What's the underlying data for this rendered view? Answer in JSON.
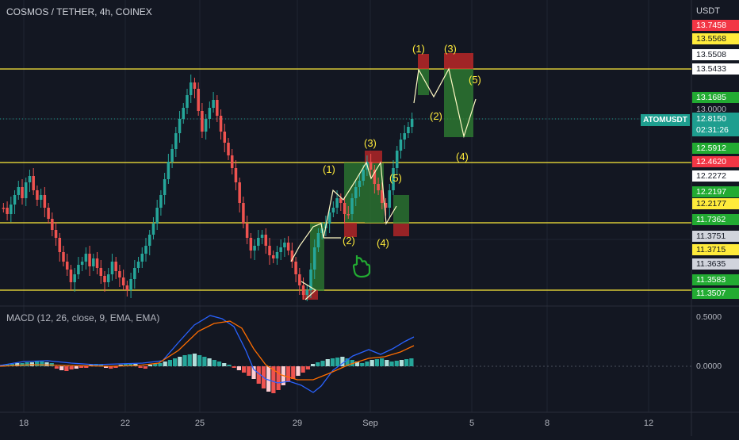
{
  "header": {
    "symbol_title": "COSMOS / TETHER, 4h, COINEX"
  },
  "price_axis": {
    "currency": "USDT",
    "labels": [
      {
        "value": "13.7458",
        "style": "red"
      },
      {
        "value": "13.5568",
        "style": "yellow"
      },
      {
        "value": "13.5508",
        "style": "white"
      },
      {
        "value": "13.5433",
        "style": "white"
      },
      {
        "value": "13.1685",
        "style": "green"
      },
      {
        "value": "13.0000",
        "style": "plain"
      },
      {
        "value": "12.5912",
        "style": "green"
      },
      {
        "value": "12.4620",
        "style": "red"
      },
      {
        "value": "12.2272",
        "style": "white"
      },
      {
        "value": "12.2197",
        "style": "green"
      },
      {
        "value": "12.2177",
        "style": "yellow"
      },
      {
        "value": "11.7362",
        "style": "green"
      },
      {
        "value": "11.3751",
        "style": "gray"
      },
      {
        "value": "11.3715",
        "style": "yellow"
      },
      {
        "value": "11.3635",
        "style": "gray"
      },
      {
        "value": "11.3583",
        "style": "green"
      },
      {
        "value": "11.3507",
        "style": "green"
      }
    ],
    "current": {
      "symbol": "ATOMUSDT",
      "price": "12.8150",
      "countdown": "02:31:26"
    }
  },
  "macd": {
    "title": "MACD (12, 26, close, 9, EMA, EMA)",
    "ticks": [
      "0.5000",
      "0.0000"
    ]
  },
  "time_axis": {
    "ticks": [
      "18",
      "22",
      "25",
      "29",
      "Sep",
      "5",
      "8",
      "12"
    ]
  },
  "wave_labels": [
    "(1)",
    "(3)",
    "(5)",
    "(2)",
    "(4)",
    "(1)",
    "(3)",
    "(5)",
    "(2)",
    "(4)"
  ],
  "colors": {
    "background": "#131722",
    "up": "#26a69a",
    "down": "#ef5350",
    "support_line": "#ffeb3b",
    "wave_label": "#ffeb3b",
    "macd_line": "#2962ff",
    "signal_line": "#ff6d00",
    "hist_pos": "#26a69a",
    "hist_neg": "#ef5350",
    "zone_green": "#2e7d32",
    "zone_red": "#c62828",
    "hand_icon": "#22ab32"
  },
  "icons": [
    "pointing-hand-icon"
  ]
}
